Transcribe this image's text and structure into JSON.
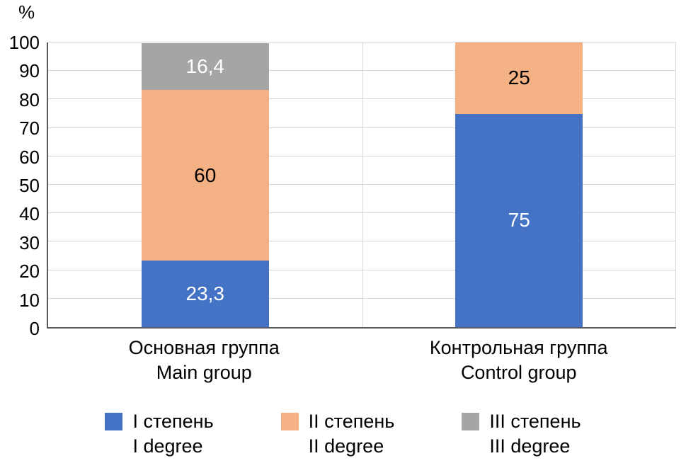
{
  "chart_data": {
    "type": "bar",
    "variant": "stacked-column",
    "title": "",
    "ylabel": "%",
    "ylim": [
      0,
      100
    ],
    "yticks": [
      0,
      10,
      20,
      30,
      40,
      50,
      60,
      70,
      80,
      90,
      100
    ],
    "grid": "horizontal",
    "legend_position": "bottom",
    "categories": [
      {
        "id": "main-group",
        "label_ru": "Основная группа",
        "label_en": "Main group"
      },
      {
        "id": "control-group",
        "label_ru": "Контрольная группа",
        "label_en": "Control group"
      }
    ],
    "series": [
      {
        "id": "degree-1",
        "name_ru": "I степень",
        "name_en": "I degree",
        "color": "#4472C4",
        "label_color": "#ffffff",
        "values": [
          23.3,
          75
        ],
        "value_labels": [
          "23,3",
          "75"
        ]
      },
      {
        "id": "degree-2",
        "name_ru": "II степень",
        "name_en": "II degree",
        "color": "#F4B183",
        "label_color": "#000000",
        "values": [
          60,
          25
        ],
        "value_labels": [
          "60",
          "25"
        ]
      },
      {
        "id": "degree-3",
        "name_ru": "III степень",
        "name_en": "III degree",
        "color": "#A5A5A5",
        "label_color": "#ffffff",
        "values": [
          16.4,
          0
        ],
        "value_labels": [
          "16,4",
          ""
        ]
      }
    ],
    "colors": {
      "gridline": "#d9d9d9",
      "axis": "#595959",
      "background": "#ffffff"
    }
  }
}
